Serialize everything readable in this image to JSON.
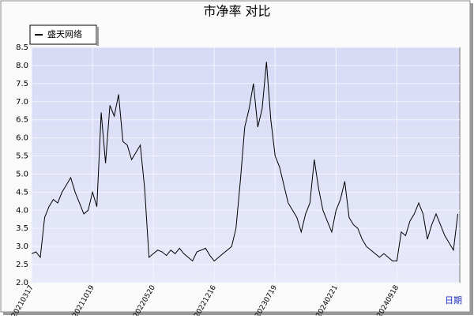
{
  "chart_data": {
    "type": "line",
    "title": "市净率  对比",
    "x_label": "日期",
    "categories": [
      "20210317",
      null,
      null,
      null,
      null,
      null,
      null,
      null,
      null,
      null,
      null,
      null,
      null,
      null,
      "20211019",
      null,
      null,
      null,
      null,
      null,
      null,
      null,
      null,
      null,
      null,
      null,
      null,
      null,
      "20220520",
      null,
      null,
      null,
      null,
      null,
      null,
      null,
      null,
      null,
      null,
      null,
      null,
      null,
      "20221216",
      null,
      null,
      null,
      null,
      null,
      null,
      null,
      null,
      null,
      null,
      null,
      null,
      null,
      "20230719",
      null,
      null,
      null,
      null,
      null,
      null,
      null,
      null,
      null,
      null,
      null,
      null,
      null,
      "20240221",
      null,
      null,
      null,
      null,
      null,
      null,
      null,
      null,
      null,
      null,
      null,
      null,
      null,
      "20240918",
      null,
      null,
      null,
      null,
      null,
      null,
      null,
      null,
      null,
      null,
      null,
      null,
      null,
      null
    ],
    "series": [
      {
        "name": "盛天网络",
        "color": "#000000",
        "values": [
          2.8,
          2.85,
          2.7,
          3.8,
          4.1,
          4.3,
          4.2,
          4.5,
          4.7,
          4.9,
          4.5,
          4.2,
          3.9,
          4.0,
          4.5,
          4.1,
          6.7,
          5.3,
          6.9,
          6.6,
          7.2,
          5.9,
          5.8,
          5.4,
          5.6,
          5.8,
          4.6,
          2.7,
          2.8,
          2.9,
          2.85,
          2.75,
          2.9,
          2.8,
          2.95,
          2.8,
          2.7,
          2.6,
          2.85,
          2.9,
          2.95,
          2.75,
          2.6,
          2.7,
          2.8,
          2.9,
          3.0,
          3.5,
          4.8,
          6.3,
          6.8,
          7.5,
          6.3,
          6.8,
          8.1,
          6.5,
          5.5,
          5.2,
          4.7,
          4.2,
          4.0,
          3.8,
          3.4,
          3.9,
          4.2,
          5.4,
          4.6,
          4.0,
          3.7,
          3.4,
          4.0,
          4.3,
          4.8,
          3.8,
          3.6,
          3.5,
          3.2,
          3.0,
          2.9,
          2.8,
          2.7,
          2.8,
          2.7,
          2.6,
          2.6,
          3.4,
          3.3,
          3.7,
          3.9,
          4.2,
          3.9,
          3.2,
          3.6,
          3.9,
          3.6,
          3.3,
          3.1,
          2.9,
          3.9
        ]
      }
    ],
    "ylim": [
      2,
      8.5
    ],
    "yticks": [
      {
        "value": 2,
        "label": "2.0"
      },
      2.5,
      {
        "value": 3,
        "label": "3.0"
      },
      3.5,
      {
        "value": 4,
        "label": "4.0"
      },
      4.5,
      {
        "value": 5,
        "label": "5.0"
      },
      5.5,
      {
        "value": 6,
        "label": "6.0"
      },
      6.5,
      {
        "value": 7,
        "label": "7.0"
      },
      7.5,
      {
        "value": 8,
        "label": "8.0"
      },
      8.5
    ],
    "grid": true,
    "legend": "top-left"
  }
}
